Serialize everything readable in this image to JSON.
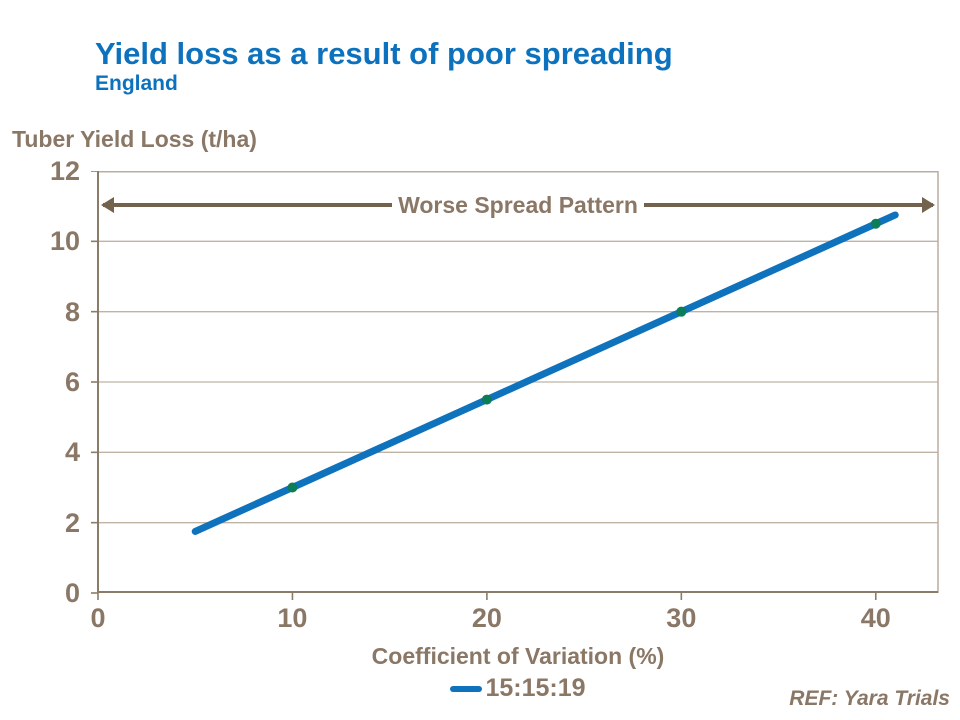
{
  "header": {
    "title": "Yield loss as a result of poor spreading",
    "subtitle": "England"
  },
  "colors": {
    "accent_blue": "#0d72bd",
    "text_brown": "#8a7765",
    "arrow_brown": "#73634d",
    "gridline": "#bfb3a4",
    "plot_border": "#b9ad9e",
    "axis_line": "#8b7c69",
    "series_line": "#0e72bc",
    "marker_green": "#0c7d58"
  },
  "chart_data": {
    "type": "line",
    "title": "Yield loss as a result of poor spreading",
    "subtitle": "England",
    "xlabel": "Coefficient of Variation (%)",
    "ylabel": "Tuber Yield Loss (t/ha)",
    "xlim": [
      0,
      43.2
    ],
    "ylim": [
      0,
      12
    ],
    "xticks": [
      0,
      10,
      20,
      30,
      40
    ],
    "yticks": [
      0,
      2,
      4,
      6,
      8,
      10,
      12
    ],
    "grid": "horizontal",
    "legend_position": "bottom",
    "annotation": {
      "text": "Worse Spread Pattern",
      "y": 11,
      "arrow": "double-headed-horizontal"
    },
    "series": [
      {
        "name": "15:15:19",
        "x": [
          5,
          10,
          20,
          30,
          40,
          41
        ],
        "y": [
          1.75,
          3,
          5.5,
          8,
          10.5,
          10.75
        ],
        "marker_x": [
          10,
          20,
          30,
          40
        ],
        "marker_y": [
          3,
          5.5,
          8,
          10.5
        ],
        "color": "#0e72bc",
        "marker_color": "#0c7d58"
      }
    ],
    "ref": "REF: Yara Trials"
  }
}
